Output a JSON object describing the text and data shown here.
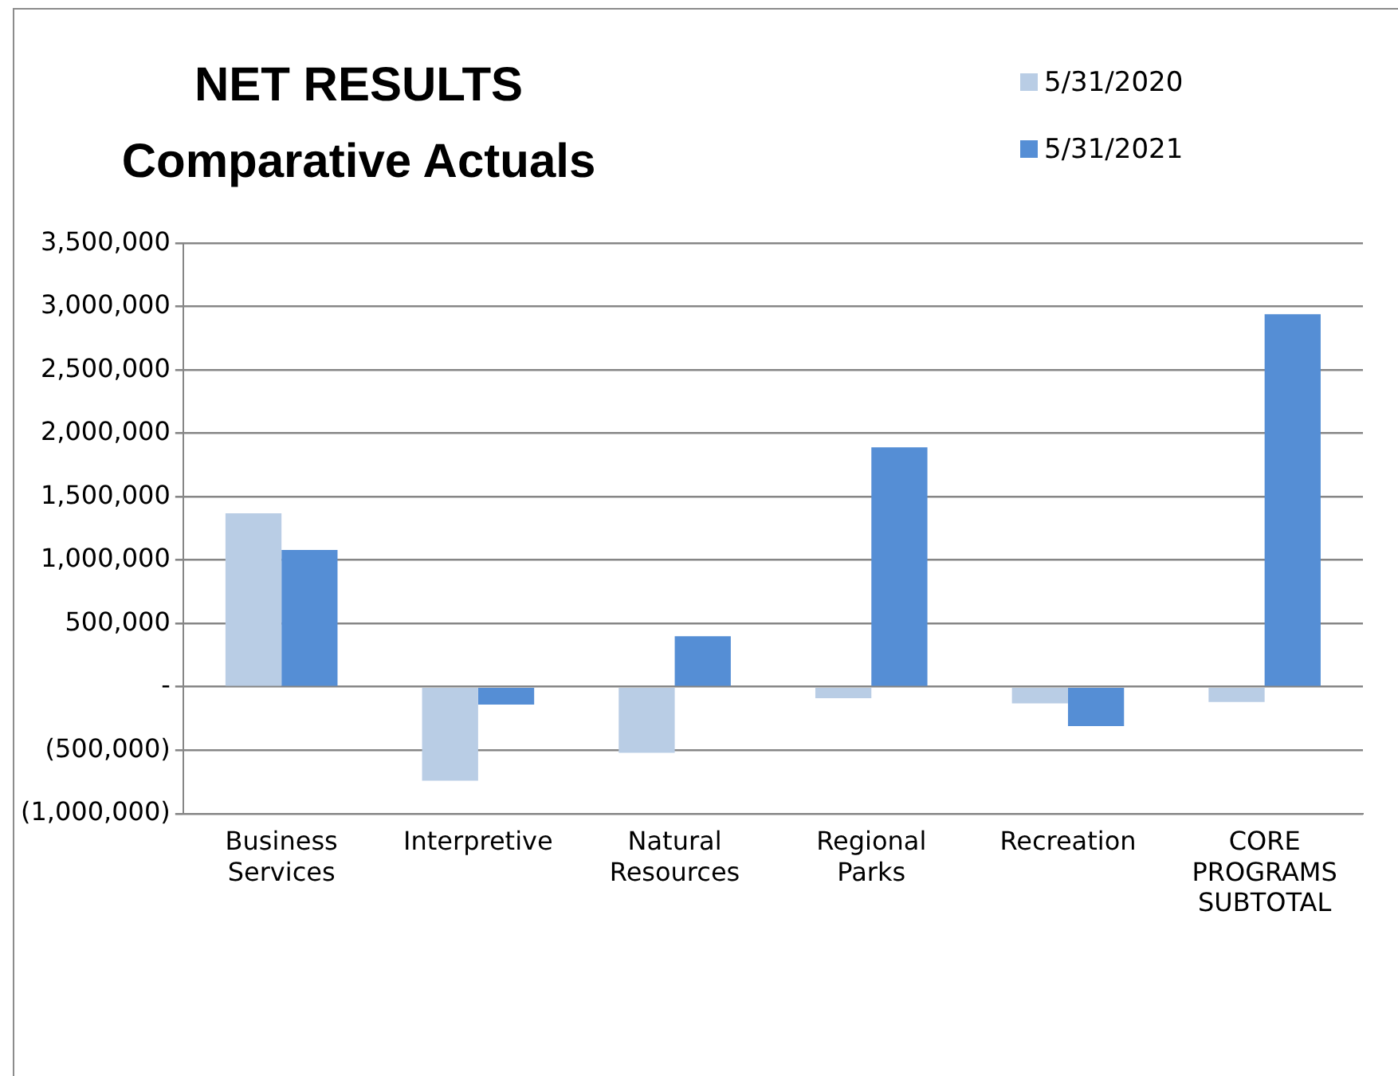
{
  "chart_data": {
    "type": "bar",
    "title": "NET RESULTS",
    "subtitle": "Comparative Actuals",
    "categories": [
      "Business Services",
      "Interpretive",
      "Natural Resources",
      "Regional Parks",
      "Recreation",
      "CORE PROGRAMS SUBTOTAL"
    ],
    "series": [
      {
        "name": "5/31/2020",
        "color": "#b9cde5",
        "values": [
          1370000,
          -740000,
          -520000,
          -90000,
          -130000,
          -120000
        ]
      },
      {
        "name": "5/31/2021",
        "color": "#558ed5",
        "values": [
          1080000,
          -140000,
          400000,
          1890000,
          -310000,
          2940000
        ]
      }
    ],
    "ylim": [
      -1000000,
      3500000
    ],
    "yticks": [
      {
        "value": -1000000,
        "label": "(1,000,000)"
      },
      {
        "value": -500000,
        "label": "(500,000)"
      },
      {
        "value": 0,
        "label": "-"
      },
      {
        "value": 500000,
        "label": "500,000"
      },
      {
        "value": 1000000,
        "label": "1,000,000"
      },
      {
        "value": 1500000,
        "label": "1,500,000"
      },
      {
        "value": 2000000,
        "label": "2,000,000"
      },
      {
        "value": 2500000,
        "label": "2,500,000"
      },
      {
        "value": 3000000,
        "label": "3,000,000"
      },
      {
        "value": 3500000,
        "label": "3,500,000"
      }
    ],
    "grid": "y",
    "legend": "top right"
  }
}
